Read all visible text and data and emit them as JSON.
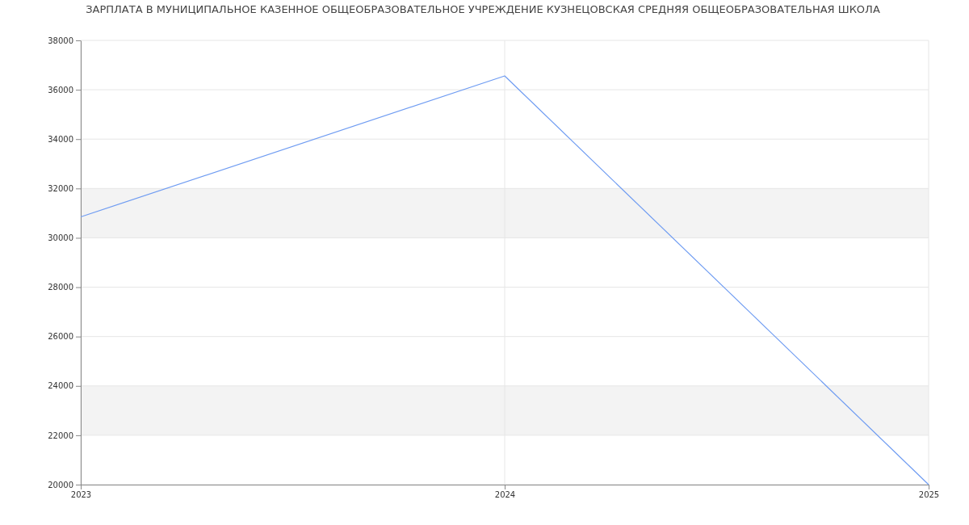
{
  "chart_data": {
    "type": "line",
    "title": "ЗАРПЛАТА В МУНИЦИПАЛЬНОЕ КАЗЕННОЕ ОБЩЕОБРАЗОВАТЕЛЬНОЕ УЧРЕЖДЕНИЕ КУЗНЕЦОВСКАЯ СРЕДНЯЯ ОБЩЕОБРАЗОВАТЕЛЬНАЯ ШКОЛА",
    "x": [
      2023,
      2024,
      2025
    ],
    "series": [
      {
        "color": "#6f9cf2",
        "values": [
          30850,
          36560,
          20000
        ]
      }
    ],
    "xlim": [
      2023,
      2025
    ],
    "xticks": [
      2023,
      2024,
      2025
    ],
    "ylim": [
      20000,
      38000
    ],
    "yticks": [
      20000,
      22000,
      24000,
      26000,
      28000,
      30000,
      32000,
      34000,
      36000,
      38000
    ],
    "grid": true,
    "marker": "none",
    "line_style": "solid"
  }
}
